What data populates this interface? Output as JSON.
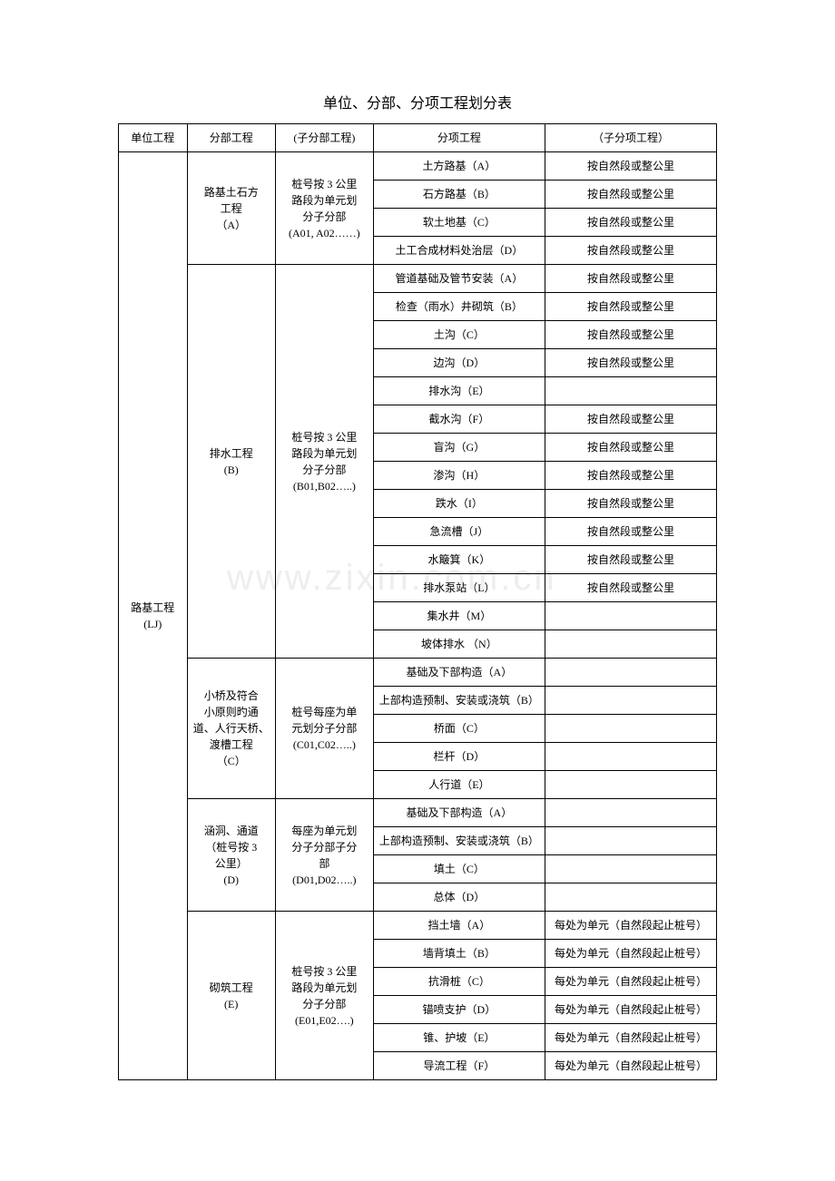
{
  "title": "单位、分部、分项工程划分表",
  "headers": {
    "c1": "单位工程",
    "c2": "分部工程",
    "c3": "(子分部工程)",
    "c4": "分项工程",
    "c5": "（子分项工程）"
  },
  "unit": "路基工程\n(LJ)",
  "sectionA": {
    "name": "路基土石方\n工程\n（A）",
    "sub": "桩号按 3 公里\n路段为单元划\n分子分部\n(A01, A02……)",
    "rows": [
      {
        "item": "土方路基（A）",
        "sub": "按自然段或整公里"
      },
      {
        "item": "石方路基（B）",
        "sub": "按自然段或整公里"
      },
      {
        "item": "软土地基（C）",
        "sub": "按自然段或整公里"
      },
      {
        "item": "土工合成材料处治层（D）",
        "sub": "按自然段或整公里"
      }
    ]
  },
  "sectionB": {
    "name": "排水工程\n(B)",
    "sub": "桩号按 3 公里\n路段为单元划\n分子分部\n(B01,B02…..)",
    "rows": [
      {
        "item": "管道基础及管节安装（A）",
        "sub": "按自然段或整公里"
      },
      {
        "item": "检查（雨水）井砌筑（B）",
        "sub": "按自然段或整公里"
      },
      {
        "item": "土沟（C）",
        "sub": "按自然段或整公里"
      },
      {
        "item": "边沟（D）",
        "sub": "按自然段或整公里"
      },
      {
        "item": "排水沟（E）",
        "sub": ""
      },
      {
        "item": "截水沟（F）",
        "sub": "按自然段或整公里"
      },
      {
        "item": "盲沟（G）",
        "sub": "按自然段或整公里"
      },
      {
        "item": "渗沟（H）",
        "sub": "按自然段或整公里"
      },
      {
        "item": "跌水（I）",
        "sub": "按自然段或整公里"
      },
      {
        "item": "急流槽（J）",
        "sub": "按自然段或整公里"
      },
      {
        "item": "水簸箕（K）",
        "sub": "按自然段或整公里"
      },
      {
        "item": "排水泵站（L）",
        "sub": "按自然段或整公里"
      },
      {
        "item": "集水井（M）",
        "sub": ""
      },
      {
        "item": "坡体排水 （N）",
        "sub": ""
      }
    ]
  },
  "sectionC": {
    "name": "小桥及符合\n小原则旳通\n道、人行天桥、\n渡槽工程\n（C）",
    "sub": "桩号每座为单\n元划分子分部\n(C01,C02…..)",
    "rows": [
      {
        "item": "基础及下部构造（A）",
        "sub": ""
      },
      {
        "item": "上部构造预制、安装或浇筑（B）",
        "sub": ""
      },
      {
        "item": "桥面（C）",
        "sub": ""
      },
      {
        "item": "栏杆（D）",
        "sub": ""
      },
      {
        "item": "人行道（E）",
        "sub": ""
      }
    ]
  },
  "sectionD": {
    "name": "涵洞、通道\n（桩号按 3\n公里）\n(D)",
    "sub": "每座为单元划\n分子分部子分\n部\n(D01,D02…..)",
    "rows": [
      {
        "item": "基础及下部构造（A）",
        "sub": ""
      },
      {
        "item": "上部构造预制、安装或浇筑（B）",
        "sub": ""
      },
      {
        "item": "填土（C）",
        "sub": ""
      },
      {
        "item": "总体（D）",
        "sub": ""
      }
    ]
  },
  "sectionE": {
    "name": "砌筑工程\n(E)",
    "sub": "桩号按 3 公里\n路段为单元划\n分子分部\n(E01,E02….)",
    "rows": [
      {
        "item": "挡土墙（A）",
        "sub": "每处为单元（自然段起止桩号）"
      },
      {
        "item": "墙背填土（B）",
        "sub": "每处为单元（自然段起止桩号）"
      },
      {
        "item": "抗滑桩（C）",
        "sub": "每处为单元（自然段起止桩号）"
      },
      {
        "item": "锚喷支护（D）",
        "sub": "每处为单元（自然段起止桩号）"
      },
      {
        "item": "锥、护坡（E）",
        "sub": "每处为单元（自然段起止桩号）"
      },
      {
        "item": "导流工程（F）",
        "sub": "每处为单元（自然段起止桩号）"
      }
    ]
  },
  "watermark": "www.zixin.com.cn"
}
